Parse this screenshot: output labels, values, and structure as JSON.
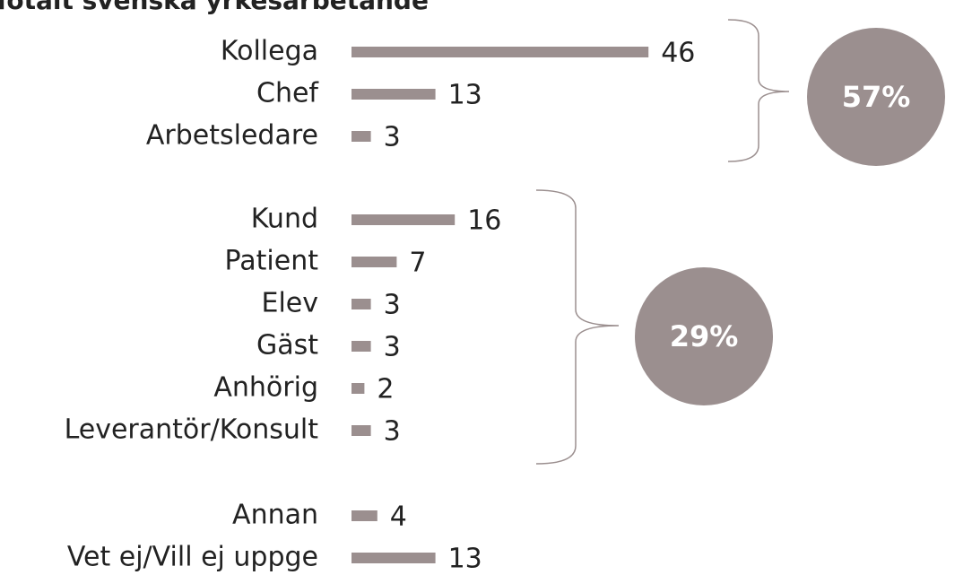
{
  "chart_data": {
    "type": "bar",
    "orientation": "horizontal",
    "title": "Totalt svenska yrkesarbetande",
    "categories": [
      "Kollega",
      "Chef",
      "Arbetsledare",
      "Kund",
      "Patient",
      "Elev",
      "Gäst",
      "Anhörig",
      "Leverantör/Konsult",
      "Annan",
      "Vet ej/Vill ej uppge"
    ],
    "values": [
      46,
      13,
      3,
      16,
      7,
      3,
      3,
      2,
      3,
      4,
      13
    ],
    "color": "#9b8f8f",
    "annotations": [
      "57%",
      "29%"
    ]
  }
}
